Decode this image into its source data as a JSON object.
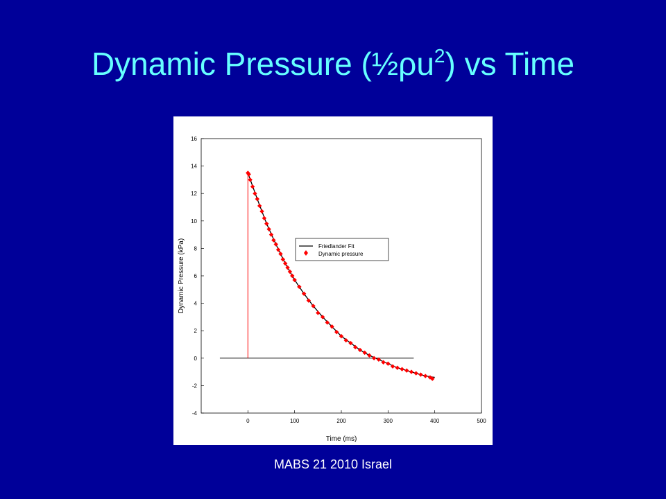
{
  "slide": {
    "title_prefix": "Dynamic Pressure (½ρu",
    "title_sup": "2",
    "title_suffix": ") vs Time",
    "footer": "MABS 21 2010 Israel"
  },
  "colors": {
    "background": "#000099",
    "title": "#66ffff",
    "points": "#ff0000",
    "fit": "#000000"
  },
  "chart_data": {
    "type": "scatter",
    "title": "",
    "xlabel": "Time (ms)",
    "ylabel": "Dynamic Pressure (kPa)",
    "xlim": [
      -100,
      500
    ],
    "ylim": [
      -4,
      16
    ],
    "xticks": [
      0,
      100,
      200,
      300,
      400,
      500
    ],
    "yticks": [
      -4,
      -2,
      0,
      2,
      4,
      6,
      8,
      10,
      12,
      14,
      16
    ],
    "legend": {
      "placement": "center-right",
      "entries": [
        "Friedlander Fit",
        "Dynamic pressure"
      ]
    },
    "series": [
      {
        "name": "Dynamic pressure",
        "style": "red diamond markers",
        "x": [
          0,
          2,
          5,
          10,
          15,
          20,
          25,
          30,
          35,
          40,
          45,
          50,
          55,
          60,
          65,
          70,
          75,
          80,
          85,
          90,
          95,
          100,
          110,
          120,
          130,
          140,
          150,
          160,
          170,
          180,
          190,
          200,
          210,
          220,
          230,
          240,
          250,
          260,
          270,
          280,
          290,
          300,
          310,
          320,
          330,
          340,
          350,
          360,
          370,
          380,
          390,
          395
        ],
        "y": [
          13.5,
          13.4,
          13.0,
          12.5,
          12.0,
          11.6,
          11.1,
          10.7,
          10.2,
          9.8,
          9.4,
          9.0,
          8.6,
          8.3,
          7.9,
          7.6,
          7.2,
          6.9,
          6.6,
          6.3,
          6.0,
          5.7,
          5.2,
          4.7,
          4.2,
          3.8,
          3.3,
          3.0,
          2.6,
          2.3,
          1.9,
          1.6,
          1.3,
          1.1,
          0.8,
          0.6,
          0.4,
          0.2,
          0.0,
          -0.1,
          -0.3,
          -0.4,
          -0.6,
          -0.7,
          -0.8,
          -0.9,
          -1.0,
          -1.1,
          -1.2,
          -1.3,
          -1.4,
          -1.5
        ]
      },
      {
        "name": "Friedlander Fit",
        "style": "black line",
        "x": [
          0,
          20,
          40,
          60,
          80,
          100,
          120,
          140,
          160,
          180,
          200,
          220,
          240,
          260,
          280,
          300,
          320,
          340,
          360,
          380,
          400
        ],
        "y": [
          13.5,
          11.6,
          9.8,
          8.3,
          6.9,
          5.7,
          4.7,
          3.8,
          3.0,
          2.3,
          1.6,
          1.1,
          0.6,
          0.2,
          -0.1,
          -0.4,
          -0.7,
          -0.9,
          -1.1,
          -1.3,
          -1.4
        ]
      }
    ],
    "reference_lines": [
      {
        "name": "zero line",
        "color": "#000000",
        "x": [
          -60,
          355
        ],
        "y": [
          0,
          0
        ]
      },
      {
        "name": "onset line",
        "color": "#ff0000",
        "x": [
          0,
          0
        ],
        "y": [
          0,
          13.5
        ]
      }
    ]
  }
}
